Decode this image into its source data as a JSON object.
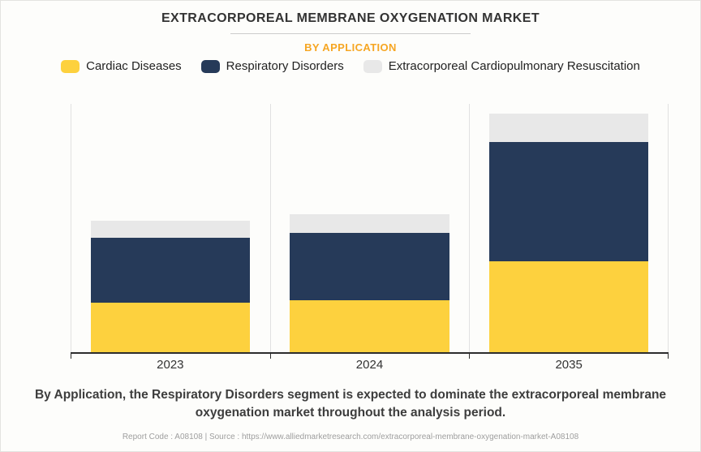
{
  "header": {
    "title": "EXTRACORPOREAL MEMBRANE OXYGENATION MARKET",
    "subtitle": "BY APPLICATION"
  },
  "chart_data": {
    "type": "bar",
    "stacked": true,
    "title": "Extracorporeal Membrane Oxygenation Market by Application",
    "categories": [
      "2023",
      "2024",
      "2035"
    ],
    "series": [
      {
        "name": "Cardiac Diseases",
        "color": "#FDD13E",
        "values": [
          20,
          21,
          36.5
        ]
      },
      {
        "name": "Respiratory Disorders",
        "color": "#263A59",
        "values": [
          26,
          27,
          48
        ]
      },
      {
        "name": "Extracorporeal Cardiopulmonary Resuscitation",
        "color": "#E8E8E8",
        "values": [
          7,
          7.5,
          11.5
        ]
      }
    ],
    "xlabel": "",
    "ylabel": "",
    "ylim": [
      0,
      100
    ],
    "y_axis_labels_shown": false,
    "units": "relative market size (no value axis shown)",
    "legend_position": "top",
    "grid": "vertical category separator lines only"
  },
  "annotation": {
    "text": "By Application, the Respiratory Disorders segment is expected to dominate the extracorporeal membrane oxygenation market throughout the analysis period."
  },
  "footer": {
    "text": "Report Code : A08108  |  Source : https://www.alliedmarketresearch.com/extracorporeal-membrane-oxygenation-market-A08108"
  },
  "colors": {
    "accent_subtitle": "#F6A623",
    "axis": "#2D2D2D",
    "grid": "#E1E1E1",
    "title_text": "#333333",
    "background": "#FDFDFB"
  }
}
